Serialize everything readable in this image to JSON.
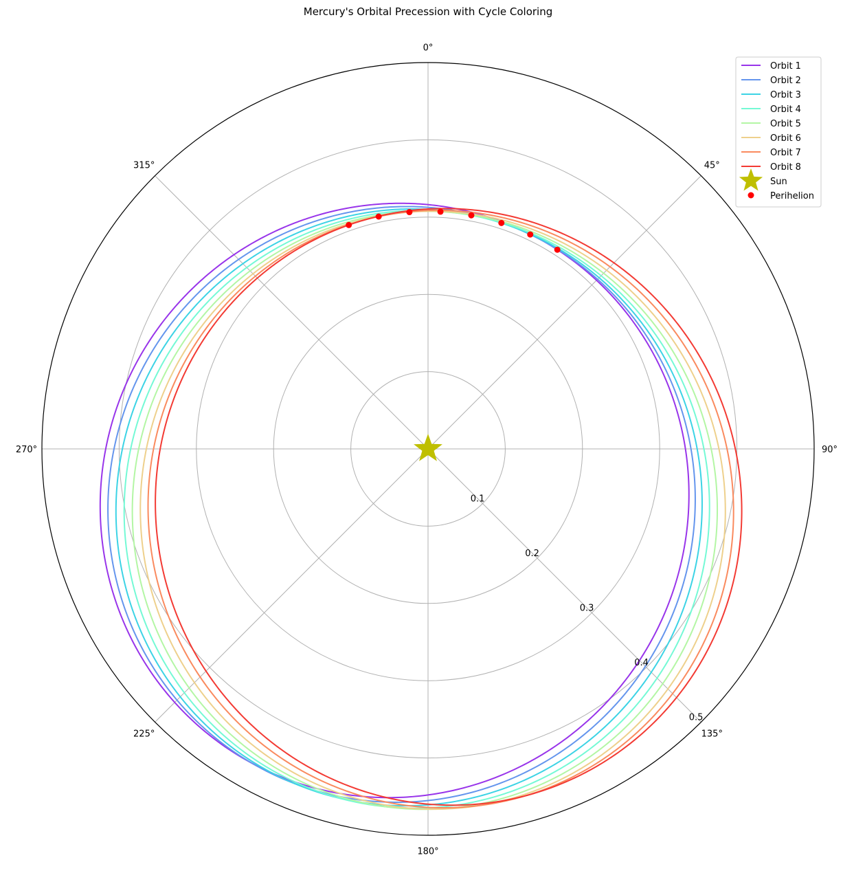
{
  "chart_data": {
    "type": "polar-line",
    "title": "Mercury's Orbital Precession with Cycle Coloring",
    "theta_zero_location": "N",
    "theta_direction": "clockwise",
    "theta_ticks": [
      {
        "deg": 0,
        "label": "0°"
      },
      {
        "deg": 45,
        "label": "45°"
      },
      {
        "deg": 90,
        "label": "90°"
      },
      {
        "deg": 135,
        "label": "135°"
      },
      {
        "deg": 180,
        "label": "180°"
      },
      {
        "deg": 225,
        "label": "225°"
      },
      {
        "deg": 270,
        "label": "270°"
      },
      {
        "deg": 315,
        "label": "315°"
      }
    ],
    "r_ticks": [
      {
        "value": 0.1,
        "label": "0.1"
      },
      {
        "value": 0.2,
        "label": "0.2"
      },
      {
        "value": 0.3,
        "label": "0.3"
      },
      {
        "value": 0.4,
        "label": "0.4"
      },
      {
        "value": 0.5,
        "label": "0.5"
      }
    ],
    "r_range": [
      0,
      0.5
    ],
    "grid": true,
    "legend_position": "top-right",
    "orbit_model": {
      "semi_major_axis": 0.387,
      "eccentricity": 0.2056,
      "base_perihelion_deg": 33,
      "perihelion_step_deg": -7.5
    },
    "series": [
      {
        "name": "Orbit 1",
        "color": "#9834ea",
        "perihelion_deg": 33.0
      },
      {
        "name": "Orbit 2",
        "color": "#6495ed",
        "perihelion_deg": 25.5
      },
      {
        "name": "Orbit 3",
        "color": "#3cd3e5",
        "perihelion_deg": 18.0
      },
      {
        "name": "Orbit 4",
        "color": "#74f9d5",
        "perihelion_deg": 10.5
      },
      {
        "name": "Orbit 5",
        "color": "#b3f6a4",
        "perihelion_deg": 3.0
      },
      {
        "name": "Orbit 6",
        "color": "#eed08c",
        "perihelion_deg": -4.5
      },
      {
        "name": "Orbit 7",
        "color": "#fa8a5e",
        "perihelion_deg": -12.0
      },
      {
        "name": "Orbit 8",
        "color": "#f33a33",
        "perihelion_deg": -19.5
      }
    ],
    "sun": {
      "name": "Sun",
      "r": 0,
      "color": "#bfbf00"
    },
    "perihelion_markers": {
      "name": "Perihelion",
      "color": "#ff0000",
      "theta_deg": [
        33.0,
        25.5,
        18.0,
        10.5,
        3.0,
        -4.5,
        -12.0,
        -19.5
      ]
    }
  }
}
